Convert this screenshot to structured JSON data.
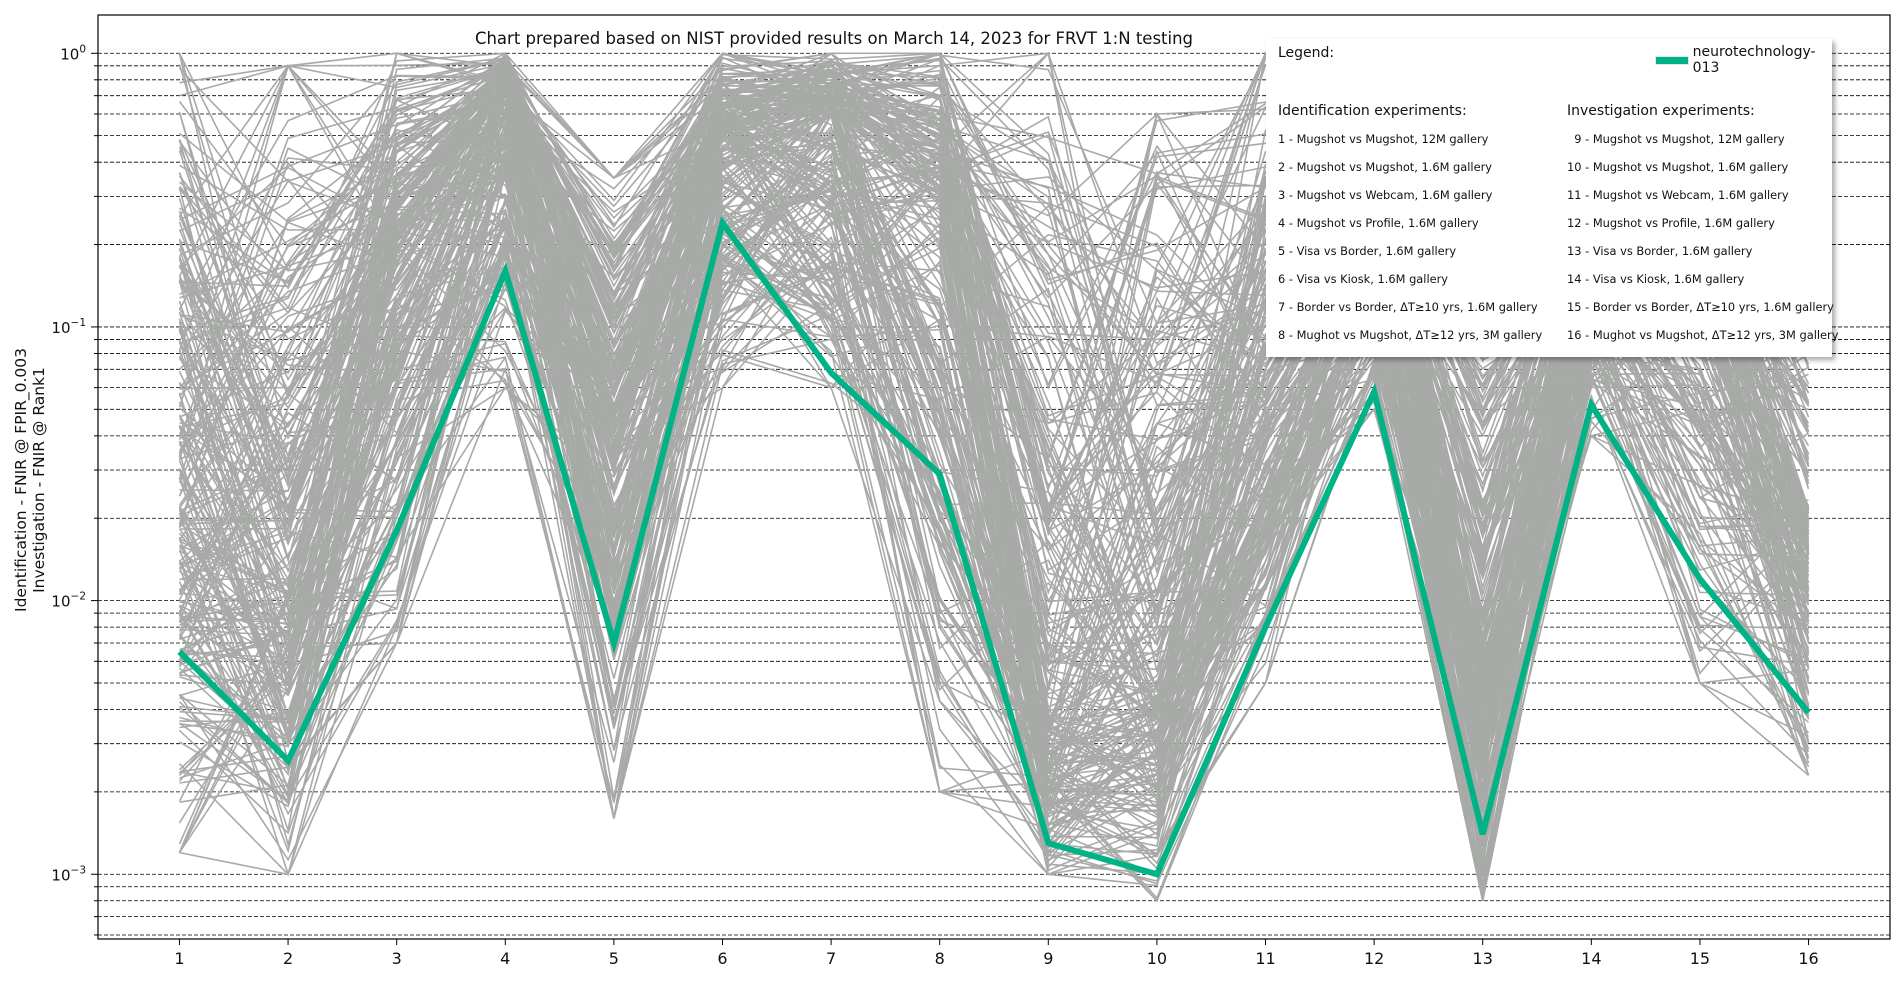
{
  "chart_data": {
    "type": "line",
    "title": "Chart prepared based on NIST provided results on March 14, 2023 for FRVT 1:N testing",
    "ylabel_lines": [
      "Identification - FNIR @ FPIR_0.003",
      "Investigation - FNIR @ Rank1"
    ],
    "xlabel": "",
    "y_scale": "log",
    "ylim": [
      0.00058,
      1.38
    ],
    "xlim": [
      0.25,
      16.75
    ],
    "x": [
      1,
      2,
      3,
      4,
      5,
      6,
      7,
      8,
      9,
      10,
      11,
      12,
      13,
      14,
      15,
      16
    ],
    "x_tick_labels": [
      "1",
      "2",
      "3",
      "4",
      "5",
      "6",
      "7",
      "8",
      "9",
      "10",
      "11",
      "12",
      "13",
      "14",
      "15",
      "16"
    ],
    "y_tick_labels": [
      {
        "value": 0.001,
        "base": "10",
        "exp": "−3"
      },
      {
        "value": 0.01,
        "base": "10",
        "exp": "−2"
      },
      {
        "value": 0.1,
        "base": "10",
        "exp": "−1"
      },
      {
        "value": 1,
        "base": "10",
        "exp": "0"
      }
    ],
    "grid": {
      "y": true,
      "style": "dashed",
      "minor": true
    },
    "highlight_series": {
      "name": "neurotechnology-013",
      "color": "#00b386",
      "values": [
        0.0065,
        0.0026,
        0.018,
        0.16,
        0.007,
        0.24,
        0.068,
        0.029,
        0.0013,
        0.001,
        0.008,
        0.058,
        0.0014,
        0.052,
        0.012,
        0.0039
      ]
    },
    "background_series": {
      "color": "#a8aaa8",
      "count": 260,
      "approx_median": [
        0.03,
        0.012,
        0.2,
        0.7,
        0.04,
        0.5,
        0.6,
        0.3,
        0.004,
        0.005,
        0.06,
        0.3,
        0.006,
        0.2,
        0.15,
        0.02
      ],
      "approx_min": [
        0.0012,
        0.001,
        0.007,
        0.06,
        0.0016,
        0.06,
        0.06,
        0.002,
        0.001,
        0.0008,
        0.005,
        0.05,
        0.0008,
        0.04,
        0.005,
        0.0023
      ],
      "approx_max": [
        1,
        0.9,
        1,
        1,
        0.35,
        1,
        1,
        1,
        1,
        0.6,
        1,
        1,
        0.35,
        1,
        1,
        0.9
      ]
    },
    "legend_placement": "top-right"
  },
  "legend": {
    "heading": "Legend:",
    "entry_label": "neurotechnology-013",
    "identification_title": "Identification experiments:",
    "investigation_title": "Investigation experiments:",
    "identification": [
      "1 - Mugshot vs Mugshot, 12M gallery",
      "2 - Mugshot vs Mugshot, 1.6M gallery",
      "3 - Mugshot vs Webcam, 1.6M gallery",
      "4 - Mugshot vs Profile, 1.6M gallery",
      "5 - Visa vs Border, 1.6M gallery",
      "6 - Visa vs Kiosk, 1.6M gallery",
      "7 - Border vs Border, ΔT≥10 yrs, 1.6M gallery",
      "8 - Mughot vs Mugshot, ΔT≥12 yrs, 3M gallery"
    ],
    "investigation": [
      "  9 - Mugshot vs Mugshot, 12M gallery",
      "10 - Mugshot vs Mugshot, 1.6M gallery",
      "11 - Mugshot vs Webcam, 1.6M gallery",
      "12 - Mugshot vs Profile, 1.6M gallery",
      "13 - Visa vs Border, 1.6M gallery",
      "14 - Visa vs Kiosk, 1.6M gallery",
      "15 - Border vs Border, ΔT≥10 yrs, 1.6M gallery",
      "16 - Mughot vs Mugshot, ΔT≥12 yrs, 3M gallery"
    ]
  }
}
